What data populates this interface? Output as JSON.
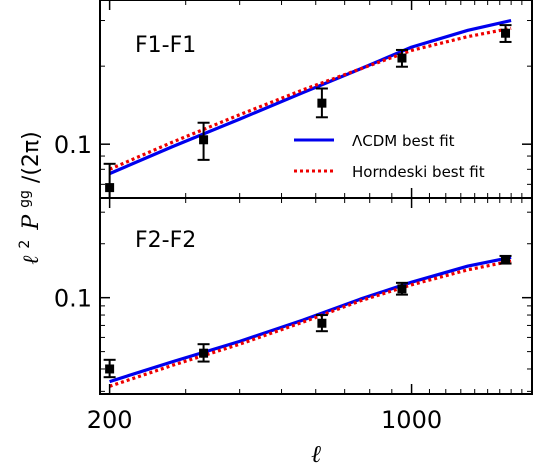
{
  "figure": {
    "ylabel": "ℓ² Pᵍᵍ/(2π)",
    "ylabel_parts": {
      "l": "ℓ",
      "sq": "2",
      "P": "P",
      "gg": "gg",
      "rest": "/(2π)"
    },
    "xlabel": "ℓ",
    "xaxis": {
      "scale": "log",
      "range": [
        190,
        1900
      ],
      "tick_values": [
        200,
        1000
      ],
      "tick_labels": [
        "200",
        "1000"
      ]
    }
  },
  "chart_data": [
    {
      "type": "line",
      "panel_label": "F1-F1",
      "yscale": "log",
      "ylim": [
        0.062,
        0.36
      ],
      "ytick_values": [
        0.1
      ],
      "ytick_labels": [
        "0.1"
      ],
      "legend": {
        "position": "lower-right",
        "entries": [
          {
            "label": "ΛCDM best fit",
            "color": "#0000ee",
            "style": "solid"
          },
          {
            "label": "Horndeski best fit",
            "color": "#ee0000",
            "style": "dotted"
          }
        ]
      },
      "series": [
        {
          "name": "ΛCDM best fit",
          "color": "#0000ee",
          "style": "solid",
          "x": [
            200,
            280,
            400,
            560,
            760,
            1000,
            1350,
            1700
          ],
          "y": [
            0.077,
            0.098,
            0.125,
            0.158,
            0.195,
            0.237,
            0.275,
            0.3
          ]
        },
        {
          "name": "Horndeski best fit",
          "color": "#ee0000",
          "style": "dotted",
          "x": [
            200,
            280,
            400,
            560,
            760,
            1000,
            1350,
            1700
          ],
          "y": [
            0.08,
            0.102,
            0.13,
            0.162,
            0.195,
            0.23,
            0.26,
            0.28
          ]
        },
        {
          "type": "errorbar",
          "color": "#000000",
          "x": [
            200,
            330,
            620,
            950,
            1650
          ],
          "y": [
            0.068,
            0.104,
            0.144,
            0.215,
            0.268
          ],
          "yerr_low": [
            0.016,
            0.017,
            0.017,
            0.016,
            0.02
          ],
          "yerr_high": [
            0.016,
            0.017,
            0.02,
            0.016,
            0.02
          ]
        }
      ]
    },
    {
      "type": "line",
      "panel_label": "F2-F2",
      "yscale": "log",
      "ylim": [
        0.029,
        0.36
      ],
      "ytick_values": [
        0.1
      ],
      "ytick_labels": [
        "0.1"
      ],
      "series": [
        {
          "name": "ΛCDM best fit",
          "color": "#0000ee",
          "style": "solid",
          "x": [
            200,
            280,
            400,
            560,
            760,
            1000,
            1350,
            1700
          ],
          "y": [
            0.034,
            0.044,
            0.057,
            0.075,
            0.098,
            0.122,
            0.15,
            0.168
          ]
        },
        {
          "name": "Horndeski best fit",
          "color": "#ee0000",
          "style": "dotted",
          "x": [
            200,
            280,
            400,
            560,
            760,
            1000,
            1350,
            1700
          ],
          "y": [
            0.032,
            0.042,
            0.055,
            0.073,
            0.096,
            0.118,
            0.143,
            0.16
          ]
        },
        {
          "type": "errorbar",
          "color": "#000000",
          "x": [
            200,
            330,
            620,
            950,
            1650
          ],
          "y": [
            0.04,
            0.049,
            0.072,
            0.112,
            0.163
          ],
          "yerr_low": [
            0.004,
            0.005,
            0.007,
            0.008,
            0.008
          ],
          "yerr_high": [
            0.005,
            0.006,
            0.008,
            0.009,
            0.008
          ]
        }
      ]
    }
  ]
}
